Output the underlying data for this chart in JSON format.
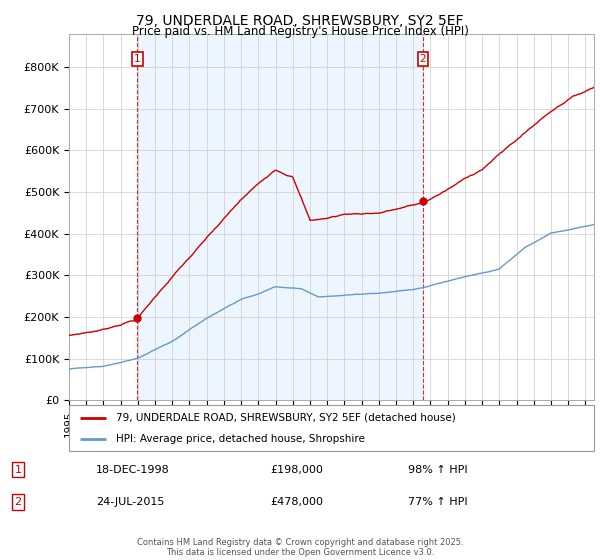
{
  "title": "79, UNDERDALE ROAD, SHREWSBURY, SY2 5EF",
  "subtitle": "Price paid vs. HM Land Registry's House Price Index (HPI)",
  "legend_line1": "79, UNDERDALE ROAD, SHREWSBURY, SY2 5EF (detached house)",
  "legend_line2": "HPI: Average price, detached house, Shropshire",
  "sale1_date": "18-DEC-1998",
  "sale1_price": 198000,
  "sale1_label": "98% ↑ HPI",
  "sale2_date": "24-JUL-2015",
  "sale2_price": 478000,
  "sale2_label": "77% ↑ HPI",
  "footer": "Contains HM Land Registry data © Crown copyright and database right 2025.\nThis data is licensed under the Open Government Licence v3.0.",
  "red_color": "#cc0000",
  "blue_color": "#6699cc",
  "blue_fill": "#ddeeff",
  "grid_color": "#cccccc",
  "bg_color": "#ffffff",
  "sale1_year": 1998.96,
  "sale2_year": 2015.56,
  "xmin": 1995,
  "xmax": 2025.5,
  "ymin": 0,
  "ymax": 880000
}
